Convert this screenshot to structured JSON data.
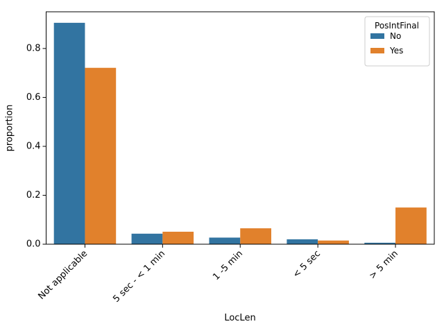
{
  "chart_data": {
    "type": "bar",
    "categories": [
      "Not applicable",
      "5 sec - < 1 min",
      "1 -5 min",
      "< 5 sec",
      "> 5 min"
    ],
    "series": [
      {
        "name": "No",
        "color": "#3274a1",
        "values": [
          0.905,
          0.043,
          0.027,
          0.02,
          0.006
        ]
      },
      {
        "name": "Yes",
        "color": "#e1812c",
        "values": [
          0.721,
          0.051,
          0.065,
          0.015,
          0.15
        ]
      }
    ],
    "xlabel": "LocLen",
    "ylabel": "proportion",
    "ylim": [
      0,
      0.95
    ],
    "yticks": [
      0.0,
      0.2,
      0.4,
      0.6,
      0.8
    ],
    "ytick_labels": [
      "0.0",
      "0.2",
      "0.4",
      "0.6",
      "0.8"
    ],
    "legend": {
      "title": "PosIntFinal",
      "placement": "top-right"
    },
    "grid": false
  }
}
